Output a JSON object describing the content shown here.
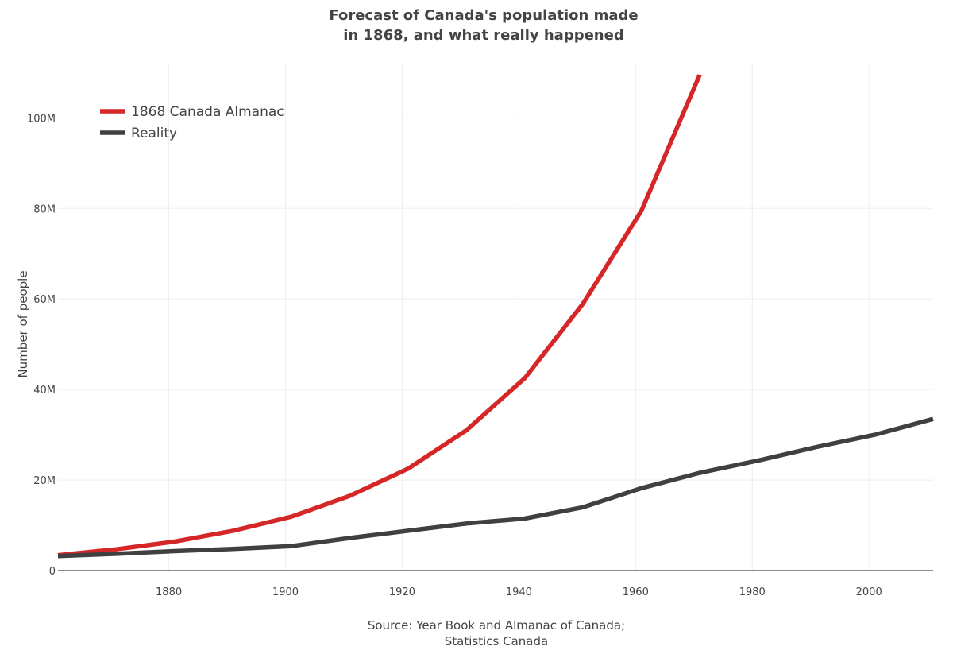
{
  "chart_data": {
    "type": "line",
    "title_lines": [
      "Forecast of Canada's population made",
      "in 1868, and what really happened"
    ],
    "xlabel": "",
    "ylabel": "Number of people",
    "source_lines": [
      "Source: Year Book and Almanac of Canada;",
      "Statistics Canada"
    ],
    "xlim": [
      1861,
      2011
    ],
    "ylim": [
      0,
      112000000
    ],
    "x_ticks": [
      1880,
      1900,
      1920,
      1940,
      1960,
      1980,
      2000
    ],
    "y_ticks": [
      0,
      20000000,
      40000000,
      60000000,
      80000000,
      100000000
    ],
    "y_tick_labels": [
      "0",
      "20M",
      "40M",
      "60M",
      "80M",
      "100M"
    ],
    "grid": true,
    "legend_position": "top-left",
    "series": [
      {
        "name": "1868 Canada Almanac",
        "color": "#d62728",
        "x": [
          1861,
          1871,
          1881,
          1891,
          1901,
          1911,
          1921,
          1931,
          1941,
          1951,
          1961,
          1971
        ],
        "y": [
          3400000,
          4700000,
          6400000,
          8800000,
          11900000,
          16500000,
          22500000,
          31000000,
          42500000,
          59000000,
          79500000,
          109500000
        ]
      },
      {
        "name": "Reality",
        "color": "#404040",
        "x": [
          1861,
          1871,
          1881,
          1891,
          1901,
          1911,
          1921,
          1931,
          1941,
          1951,
          1961,
          1971,
          1981,
          1991,
          2001,
          2011
        ],
        "y": [
          3200000,
          3700000,
          4300000,
          4800000,
          5400000,
          7200000,
          8800000,
          10400000,
          11500000,
          14000000,
          18200000,
          21600000,
          24300000,
          27300000,
          30000000,
          33500000
        ]
      }
    ]
  }
}
